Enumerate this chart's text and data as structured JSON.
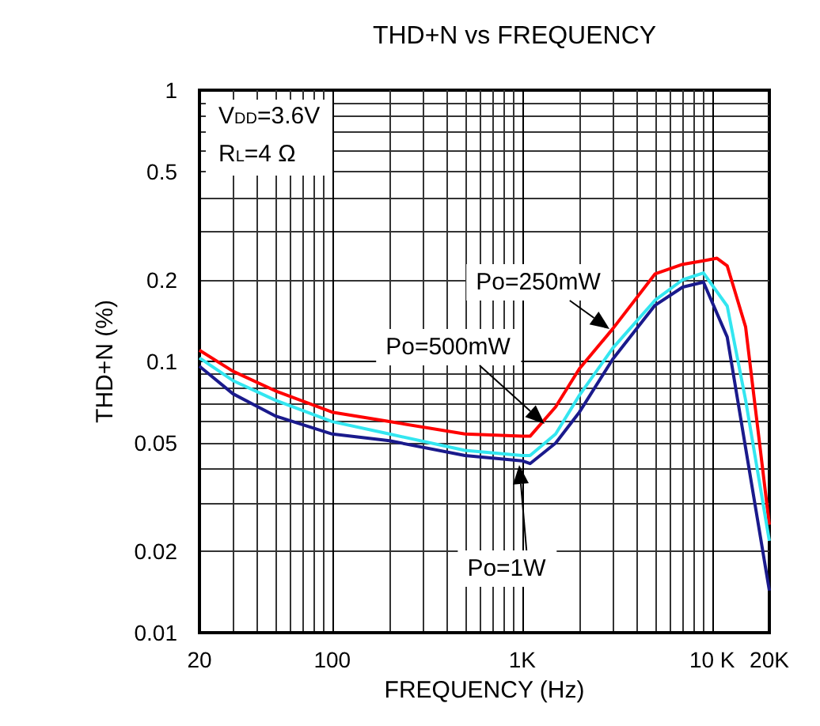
{
  "chart_data": {
    "type": "line",
    "title": "THD+N vs FREQUENCY",
    "xlabel": "FREQUENCY (Hz)",
    "ylabel": "THD+N (%)",
    "log": "xy",
    "grid": true,
    "marker": "none",
    "line_style": "solid",
    "xlim": [
      20,
      20000
    ],
    "xticks": [
      20,
      100,
      {
        "value": 1000,
        "label": "1K"
      },
      {
        "value": 10000,
        "label": "10 K"
      },
      {
        "value": 20000,
        "label": "20K"
      }
    ],
    "ylim": [
      0.01,
      1
    ],
    "yticks": [
      0.01,
      0.02,
      0.05,
      0.1,
      0.2,
      0.5,
      1
    ],
    "annotations": [
      "V$_{DD}$=3.6V",
      "R$_{L}$=4 Ω",
      "Po=250mW",
      "Po=500mW",
      "Po=1W"
    ],
    "series": [
      {
        "color": "#ff0000",
        "x": [
          20,
          30,
          50,
          100,
          200,
          500,
          1000,
          1100,
          1500,
          2000,
          3000,
          5000,
          7000,
          9000,
          10600,
          12000,
          13000,
          15000,
          20000
        ],
        "values": [
          0.11,
          0.092,
          0.078,
          0.065,
          0.06,
          0.054,
          0.053,
          0.053,
          0.068,
          0.094,
          0.132,
          0.21,
          0.228,
          0.235,
          0.24,
          0.225,
          0.187,
          0.134,
          0.025
        ]
      },
      {
        "color": "#33e6f0",
        "x": [
          20,
          30,
          50,
          100,
          200,
          500,
          1000,
          1100,
          1500,
          2000,
          3000,
          5000,
          7000,
          9000,
          12000,
          15000,
          20000
        ],
        "values": [
          0.103,
          0.085,
          0.072,
          0.06,
          0.054,
          0.047,
          0.045,
          0.045,
          0.054,
          0.075,
          0.112,
          0.168,
          0.2,
          0.212,
          0.16,
          0.072,
          0.0218
        ]
      },
      {
        "color": "#1a1a8c",
        "x": [
          20,
          30,
          50,
          100,
          200,
          500,
          1000,
          1100,
          1500,
          2000,
          3000,
          5000,
          7000,
          9000,
          12000,
          15000,
          20000
        ],
        "values": [
          0.096,
          0.076,
          0.063,
          0.054,
          0.051,
          0.045,
          0.043,
          0.042,
          0.05,
          0.065,
          0.102,
          0.161,
          0.188,
          0.196,
          0.123,
          0.048,
          0.0143
        ]
      }
    ]
  }
}
